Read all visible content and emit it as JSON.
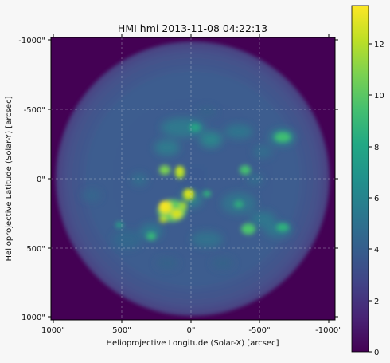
{
  "figure": {
    "title": "HMI hmi 2013-11-08 04:22:13",
    "xlabel": "Helioprojective Longitude (Solar-X) [arcsec]",
    "ylabel": "Helioprojective Latitude (Solar-Y) [arcsec]",
    "x_ticks": [
      "1000\"",
      "500\"",
      "0\"",
      "-500\"",
      "-1000\""
    ],
    "y_ticks": [
      "-1000\"",
      "-500\"",
      "0\"",
      "500\"",
      "1000\""
    ],
    "colorbar": {
      "colormap": "viridis",
      "ticks": [
        "0",
        "2",
        "4",
        "6",
        "8",
        "10",
        "12"
      ],
      "range": [
        0,
        13.5
      ]
    },
    "colors": {
      "background": "#f7f7f7",
      "space": "#440154",
      "disk": "#3b528b",
      "active_region": "#fde725"
    }
  }
}
